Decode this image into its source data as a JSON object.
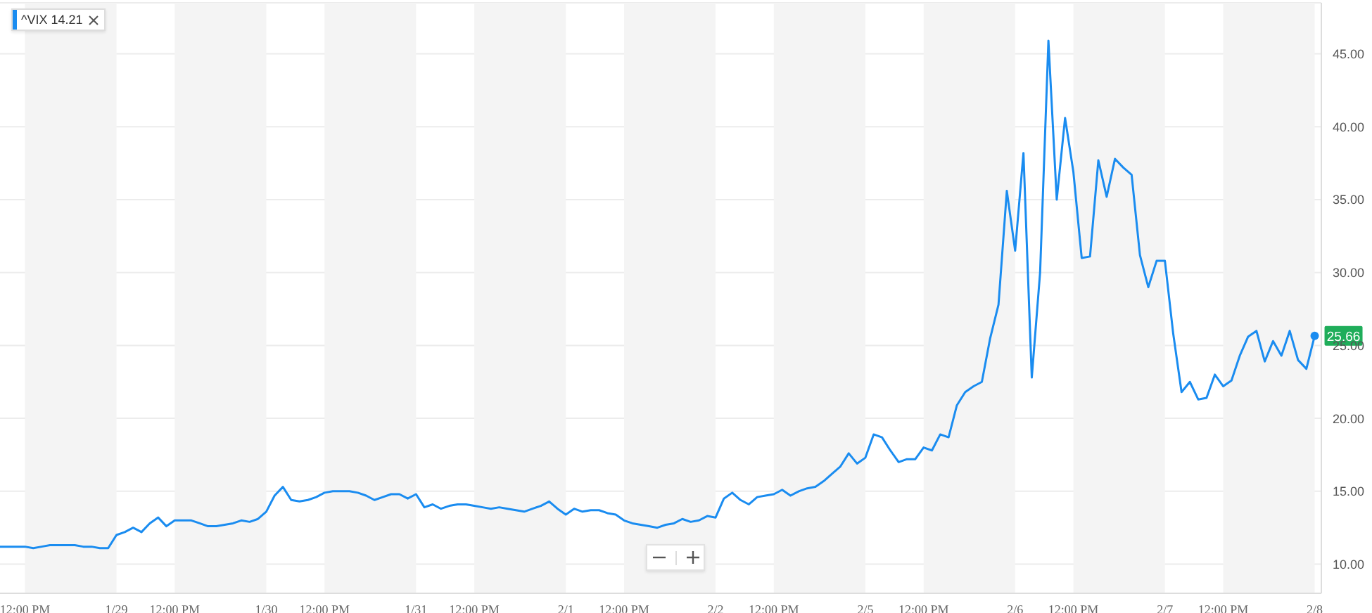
{
  "chart_data": {
    "type": "line",
    "categories": [
      null,
      null,
      null,
      "12:00 PM",
      null,
      null,
      null,
      null,
      null,
      null,
      null,
      null,
      null,
      null,
      "1/29",
      null,
      null,
      null,
      null,
      null,
      null,
      "12:00 PM",
      null,
      null,
      null,
      null,
      null,
      null,
      null,
      null,
      null,
      null,
      "1/30",
      null,
      null,
      null,
      null,
      null,
      null,
      "12:00 PM",
      null,
      null,
      null,
      null,
      null,
      null,
      null,
      null,
      null,
      null,
      "1/31",
      null,
      null,
      null,
      null,
      null,
      null,
      "12:00 PM",
      null,
      null,
      null,
      null,
      null,
      null,
      null,
      null,
      null,
      null,
      "2/1",
      null,
      null,
      null,
      null,
      null,
      null,
      "12:00 PM",
      null,
      null,
      null,
      null,
      null,
      null,
      null,
      null,
      null,
      null,
      "2/2",
      null,
      null,
      null,
      null,
      null,
      null,
      "12:00 PM",
      null,
      null,
      null,
      null,
      null,
      null,
      null,
      null,
      null,
      null,
      "2/5",
      null,
      null,
      null,
      null,
      null,
      null,
      "12:00 PM",
      null,
      null,
      null,
      null,
      null,
      null,
      null,
      null,
      null,
      null,
      "2/6",
      null,
      null,
      null,
      null,
      null,
      null,
      "12:00 PM",
      null,
      null,
      null,
      null,
      null,
      null,
      null,
      null,
      null,
      null,
      "2/7",
      null,
      null,
      null,
      null,
      null,
      null,
      "12:00 PM",
      null,
      null,
      null,
      null,
      null,
      null,
      null,
      null,
      null,
      null,
      "2/8"
    ],
    "series": [
      {
        "name": "^VIX 14.21",
        "color": "#1a8cf0",
        "values": [
          11.2,
          11.2,
          11.2,
          11.2,
          11.1,
          11.2,
          11.3,
          11.3,
          11.3,
          11.3,
          11.2,
          11.2,
          11.1,
          11.1,
          12.0,
          12.2,
          12.5,
          12.2,
          12.8,
          13.2,
          12.6,
          13.0,
          13.0,
          13.0,
          12.8,
          12.6,
          12.6,
          12.7,
          12.8,
          13.0,
          12.9,
          13.1,
          13.6,
          14.7,
          15.3,
          14.4,
          14.3,
          14.4,
          14.6,
          14.9,
          15.0,
          15.0,
          15.0,
          14.9,
          14.7,
          14.4,
          14.6,
          14.8,
          14.8,
          14.5,
          14.8,
          13.9,
          14.1,
          13.8,
          14.0,
          14.1,
          14.1,
          14.0,
          13.9,
          13.8,
          13.9,
          13.8,
          13.7,
          13.6,
          13.8,
          14.0,
          14.3,
          13.8,
          13.4,
          13.8,
          13.6,
          13.7,
          13.7,
          13.5,
          13.4,
          13.0,
          12.8,
          12.7,
          12.6,
          12.5,
          12.7,
          12.8,
          13.1,
          12.9,
          13.0,
          13.3,
          13.2,
          14.5,
          14.9,
          14.4,
          14.1,
          14.6,
          14.7,
          14.8,
          15.1,
          14.7,
          15.0,
          15.2,
          15.3,
          15.7,
          16.2,
          16.7,
          17.6,
          16.9,
          17.3,
          18.9,
          18.7,
          17.8,
          17.0,
          17.2,
          17.2,
          18.0,
          17.8,
          18.9,
          18.7,
          20.9,
          21.8,
          22.2,
          22.5,
          25.5,
          27.8,
          35.6,
          31.5,
          38.2,
          22.8,
          30.0,
          45.9,
          35.0,
          40.6,
          36.9,
          31.0,
          31.1,
          37.7,
          35.2,
          37.8,
          37.2,
          36.7,
          31.2,
          29.0,
          30.8,
          30.8,
          25.8,
          21.8,
          22.5,
          21.3,
          21.4,
          23.0,
          22.2,
          22.6,
          24.3,
          25.6,
          26.0,
          23.9,
          25.3,
          24.3,
          26.0,
          24.0,
          23.4,
          25.66
        ]
      }
    ],
    "ylim": [
      8,
      48.5
    ],
    "yticks": [
      {
        "value": 10,
        "label": "10.00"
      },
      {
        "value": 15,
        "label": "15.00"
      },
      {
        "value": 20,
        "label": "20.00"
      },
      {
        "value": 25,
        "label": "25.00"
      },
      {
        "value": 30,
        "label": "30.00"
      },
      {
        "value": 35,
        "label": "35.00"
      },
      {
        "value": 40,
        "label": "40.00"
      },
      {
        "value": 45,
        "label": "45.00"
      }
    ],
    "grid": "y",
    "legend": "top left",
    "marker": "none",
    "line_style": "solid",
    "annotations": [
      {
        "text": "25.66",
        "x": "2/8",
        "y": 25.66
      }
    ]
  }
}
